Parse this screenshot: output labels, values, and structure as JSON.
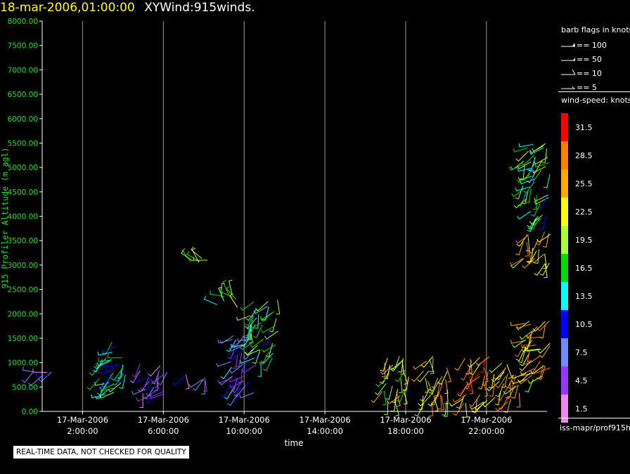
{
  "header": {
    "date": "18-mar-2006,01:00:00",
    "name": "XYWind:915winds."
  },
  "notice": "REAL-TIME DATA, NOT CHECKED FOR QUALITY",
  "footer_label": "iss-mapr/prof915h",
  "barb_legend": {
    "title": "barb flags in knots",
    "items": [
      "== 100",
      "== 50",
      "== 10",
      "== 5"
    ]
  },
  "speed_legend": {
    "title": "wind-speed: knots",
    "bins": [
      {
        "label": "31.5",
        "color": "#ff0000"
      },
      {
        "label": "28.5",
        "color": "#ff7f00"
      },
      {
        "label": "25.5",
        "color": "#ffaa00"
      },
      {
        "label": "22.5",
        "color": "#ffff00"
      },
      {
        "label": "19.5",
        "color": "#aaff33"
      },
      {
        "label": "16.5",
        "color": "#00dd00"
      },
      {
        "label": "13.5",
        "color": "#00ffff"
      },
      {
        "label": "10.5",
        "color": "#0000ff"
      },
      {
        "label": "7.5",
        "color": "#6e8cff"
      },
      {
        "label": "4.5",
        "color": "#9933ff"
      },
      {
        "label": "1.5",
        "color": "#ee88ee"
      }
    ]
  },
  "chart_data": {
    "type": "scatter",
    "title": "XYWind:915winds.",
    "xlabel": "time",
    "ylabel": "915 Profiler Altitude (m agl)",
    "ylim": [
      0,
      8000
    ],
    "xlim": [
      "17-Mar-2006 00:00",
      "18-Mar-2006 01:00"
    ],
    "x_ticks": [
      {
        "date": "17-Mar-2006",
        "time": "2:00:00"
      },
      {
        "date": "17-Mar-2006",
        "time": "6:00:00"
      },
      {
        "date": "17-Mar-2006",
        "time": "10:00:00"
      },
      {
        "date": "17-Mar-2006",
        "time": "14:00:00"
      },
      {
        "date": "17-Mar-2006",
        "time": "18:00:00"
      },
      {
        "date": "17-Mar-2006",
        "time": "22:00:00"
      }
    ],
    "y_ticks": [
      "0.00",
      "500.00",
      "1000.00",
      "1500.00",
      "2000.00",
      "2500.00",
      "3000.00",
      "3500.00",
      "4000.00",
      "4500.00",
      "5000.00",
      "5500.00",
      "6000.00",
      "6500.00",
      "7000.00",
      "7500.00",
      "8000.00"
    ],
    "grid": "vertical",
    "colorbar": "wind-speed: knots",
    "clusters": [
      {
        "time": "17-Mar-2006 00:00",
        "alt_min": 700,
        "alt_max": 850,
        "speed": 6,
        "dir": 240
      },
      {
        "time": "17-Mar-2006 03:30",
        "alt_min": 250,
        "alt_max": 1450,
        "speed": 14,
        "dir": 230
      },
      {
        "time": "17-Mar-2006 05:30",
        "alt_min": 300,
        "alt_max": 1000,
        "speed": 6,
        "dir": 210
      },
      {
        "time": "17-Mar-2006 07:30",
        "alt_min": 600,
        "alt_max": 800,
        "speed": 6,
        "dir": 200
      },
      {
        "time": "17-Mar-2006 08:00",
        "alt_min": 3050,
        "alt_max": 3150,
        "speed": 18,
        "dir": 300
      },
      {
        "time": "17-Mar-2006 09:00",
        "alt_min": 2100,
        "alt_max": 2400,
        "speed": 18,
        "dir": 320
      },
      {
        "time": "17-Mar-2006 10:00",
        "alt_min": 350,
        "alt_max": 1600,
        "speed": 8,
        "dir": 220
      },
      {
        "time": "17-Mar-2006 11:00",
        "alt_min": 1000,
        "alt_max": 2300,
        "speed": 16,
        "dir": 210
      },
      {
        "time": "17-Mar-2006 17:30",
        "alt_min": 200,
        "alt_max": 1150,
        "speed": 20,
        "dir": 200
      },
      {
        "time": "17-Mar-2006 19:30",
        "alt_min": 150,
        "alt_max": 1150,
        "speed": 24,
        "dir": 200
      },
      {
        "time": "17-Mar-2006 21:30",
        "alt_min": 150,
        "alt_max": 1150,
        "speed": 26,
        "dir": 200
      },
      {
        "time": "17-Mar-2006 23:00",
        "alt_min": 200,
        "alt_max": 1050,
        "speed": 25,
        "dir": 200
      },
      {
        "time": "18-Mar-2006 00:30",
        "alt_min": 550,
        "alt_max": 1900,
        "speed": 24,
        "dir": 230
      },
      {
        "time": "18-Mar-2006 00:30",
        "alt_min": 3000,
        "alt_max": 3750,
        "speed": 25,
        "dir": 210
      },
      {
        "time": "18-Mar-2006 00:30",
        "alt_min": 3800,
        "alt_max": 5500,
        "speed": 16,
        "dir": 220
      }
    ]
  }
}
